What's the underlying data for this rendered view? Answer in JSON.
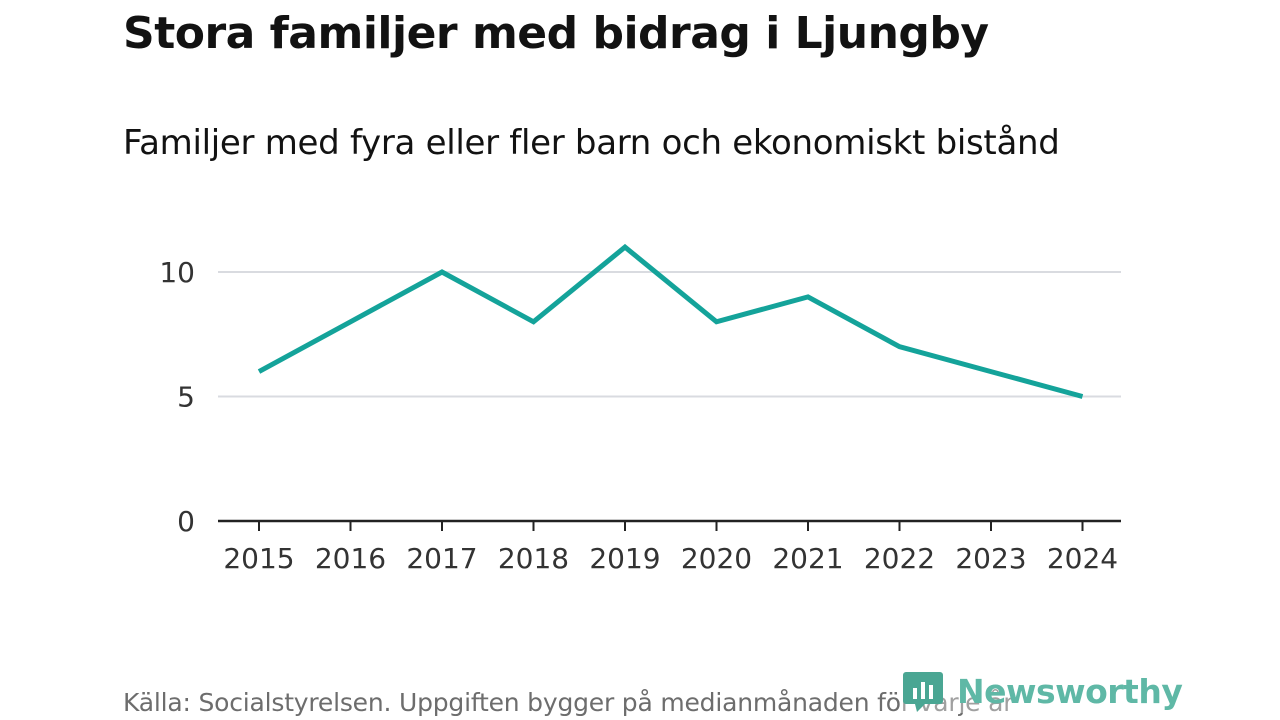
{
  "header": {
    "title": "Stora familjer med bidrag i Ljungby",
    "subtitle": "Familjer med fyra eller fler barn och ekonomiskt bistånd"
  },
  "footer": {
    "source": "Källa: Socialstyrelsen. Uppgiften bygger på medianmånaden för varje år",
    "brand": "Newsworthy"
  },
  "colors": {
    "line": "#14a39a",
    "grid": "#d9dbe0",
    "axis": "#222222",
    "brand": "#5fb8a6"
  },
  "chart_data": {
    "type": "line",
    "title": "Stora familjer med bidrag i Ljungby",
    "subtitle": "Familjer med fyra eller fler barn och ekonomiskt bistånd",
    "xlabel": "",
    "ylabel": "",
    "x": [
      "2015",
      "2016",
      "2017",
      "2018",
      "2019",
      "2020",
      "2021",
      "2022",
      "2023",
      "2024"
    ],
    "series": [
      {
        "name": "Familjer med fyra eller fler barn och ekonomiskt bistånd",
        "values": [
          6,
          8,
          10,
          8,
          11,
          8,
          9,
          7,
          6,
          5
        ]
      }
    ],
    "yticks": [
      0,
      5,
      10
    ],
    "ylim": [
      0,
      11
    ],
    "grid": true,
    "legend": "none"
  }
}
